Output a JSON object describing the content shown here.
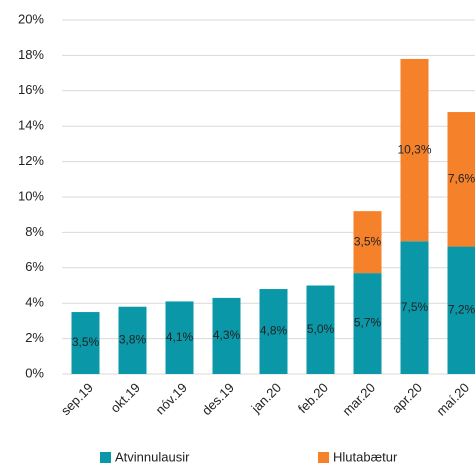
{
  "chart_data": {
    "type": "stacked_bar",
    "categories": [
      "sep.19",
      "okt.19",
      "nóv.19",
      "des.19",
      "jan.20",
      "feb.20",
      "mar.20",
      "apr.20",
      "maí.20"
    ],
    "series": [
      {
        "name": "Atvinnulausir",
        "color": "#0a97a8",
        "values": [
          3.5,
          3.8,
          4.1,
          4.3,
          4.8,
          5.0,
          5.7,
          7.5,
          7.2
        ],
        "value_labels": [
          "3,5%",
          "3,8%",
          "4,1%",
          "4,3%",
          "4,8%",
          "5,0%",
          "5,7%",
          "7,5%",
          "7,2%"
        ]
      },
      {
        "name": "Hlutabætur",
        "color": "#f5822a",
        "values": [
          null,
          null,
          null,
          null,
          null,
          null,
          3.5,
          10.3,
          7.6
        ],
        "value_labels": [
          null,
          null,
          null,
          null,
          null,
          null,
          "3,5%",
          "10,3%",
          "7,6%"
        ]
      }
    ],
    "ylim": [
      0,
      20
    ],
    "yticks": [
      {
        "value": 0,
        "label": "0%"
      },
      {
        "value": 2,
        "label": "2%"
      },
      {
        "value": 4,
        "label": "4%"
      },
      {
        "value": 6,
        "label": "6%"
      },
      {
        "value": 8,
        "label": "8%"
      },
      {
        "value": 10,
        "label": "10%"
      },
      {
        "value": 12,
        "label": "12%"
      },
      {
        "value": 14,
        "label": "14%"
      },
      {
        "value": 16,
        "label": "16%"
      },
      {
        "value": 18,
        "label": "18%"
      },
      {
        "value": 20,
        "label": "20%"
      }
    ],
    "grid": true,
    "legend": "bottom"
  }
}
